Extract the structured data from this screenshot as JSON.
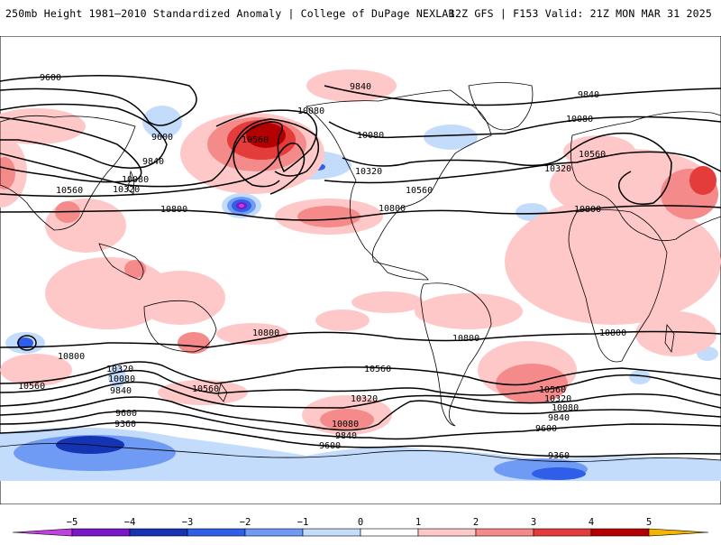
{
  "header": {
    "title_left": "250mb Height 1981–2010 Standardized Anomaly | College of DuPage NEXLAB",
    "title_right": "12Z GFS | F153 Valid: 21Z MON MAR 31 2025"
  },
  "contour_labels": [
    "9600",
    "9840",
    "9840",
    "10080",
    "10080",
    "10560",
    "9600",
    "9840",
    "10080",
    "10320",
    "10560",
    "10800",
    "10080",
    "10320",
    "10560",
    "10800",
    "10320",
    "10560",
    "10800",
    "10800",
    "10800",
    "10800",
    "10800",
    "10560",
    "10320",
    "10080",
    "9840",
    "10560",
    "10320",
    "10080",
    "9840",
    "9600",
    "10560",
    "10320",
    "10080",
    "9840",
    "9600",
    "9360",
    "9360",
    "10560",
    "9600"
  ],
  "colorbar": {
    "ticks": [
      "−5",
      "−4",
      "−3",
      "−2",
      "−1",
      "0",
      "1",
      "2",
      "3",
      "4",
      "5"
    ],
    "colors": [
      "#c040e0",
      "#7a18c8",
      "#1434b4",
      "#2f5ee8",
      "#6f9bf4",
      "#c3dcfb",
      "#ffffff",
      "#ffc8c8",
      "#f58a8a",
      "#e43b3b",
      "#b40000",
      "#f4b400"
    ]
  },
  "anomaly_colors": {
    "neg1": "#c3dcfb",
    "neg2": "#6f9bf4",
    "neg3": "#2f5ee8",
    "neg4": "#1434b4",
    "neg5": "#c040e0",
    "pos1": "#ffc8c8",
    "pos2": "#f58a8a",
    "pos3": "#e43b3b",
    "pos4": "#b40000"
  }
}
